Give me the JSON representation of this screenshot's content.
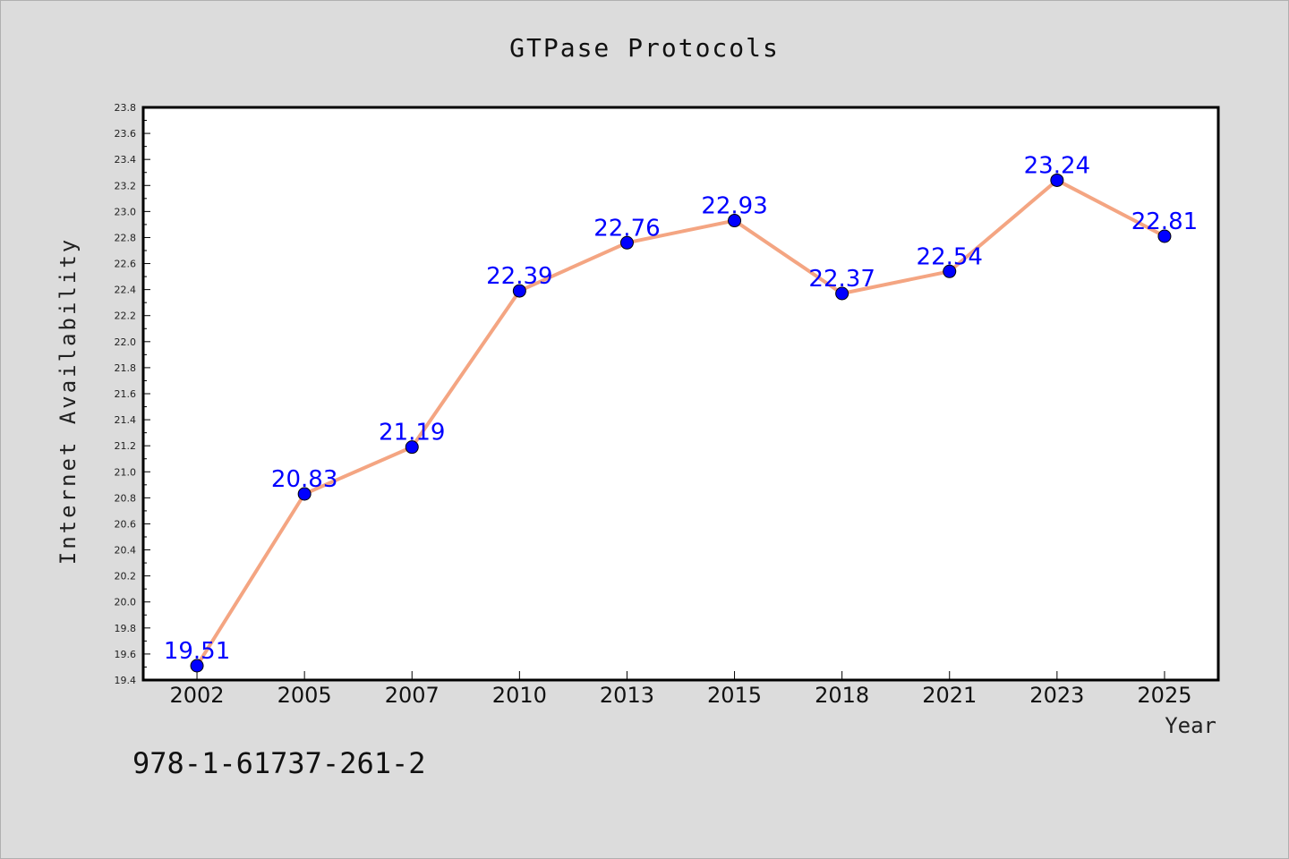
{
  "chart_data": {
    "type": "line",
    "title": "GTPase Protocols",
    "xlabel": "Year",
    "ylabel": "Internet Availability",
    "categories": [
      "2002",
      "2005",
      "2007",
      "2010",
      "2013",
      "2015",
      "2018",
      "2021",
      "2023",
      "2025"
    ],
    "series": [
      {
        "values": [
          19.51,
          20.83,
          21.19,
          22.39,
          22.76,
          22.93,
          22.37,
          22.54,
          23.24,
          22.81
        ],
        "line_color": "#f4a582",
        "marker_color": "#0000ff"
      }
    ],
    "data_labels": [
      "19.51",
      "20.83",
      "21.19",
      "22.39",
      "22.76",
      "22.93",
      "22.37",
      "22.54",
      "23.24",
      "22.81"
    ],
    "ylim": [
      19.4,
      23.8
    ],
    "yticks": [
      "19.4",
      "19.6",
      "19.8",
      "20.0",
      "20.2",
      "20.4",
      "20.6",
      "20.8",
      "21.0",
      "21.2",
      "21.4",
      "21.6",
      "21.8",
      "22.0",
      "22.2",
      "22.4",
      "22.6",
      "22.8",
      "23.0",
      "23.2",
      "23.4",
      "23.6",
      "23.8"
    ],
    "grid": false,
    "label_color": "#0000ff"
  },
  "footnote": "978-1-61737-261-2"
}
